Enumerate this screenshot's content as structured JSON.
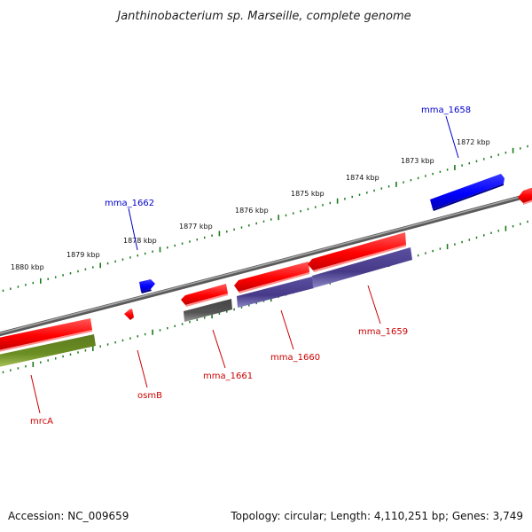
{
  "title": "Janthinobacterium sp. Marseille, complete genome",
  "footer": {
    "accession": "Accession: NC_009659",
    "summary": "Topology: circular; Length: 4,110,251 bp; Genes: 3,749"
  },
  "colors": {
    "forward_gene": "#ff0000",
    "reverse_gene": "#0000ff",
    "cds_purple": "#4b3f8e",
    "cds_olive": "#6b8e23",
    "cds_gray": "#555555",
    "ticks": "#1a7a1a",
    "backbone": "#777777",
    "label_red": "#cc0000",
    "label_blue": "#0000cc"
  },
  "ruler_labels": [
    "1880 kbp",
    "1879 kbp",
    "1878 kbp",
    "1877 kbp",
    "1876 kbp",
    "1875 kbp",
    "1874 kbp",
    "1873 kbp",
    "1872 kbp"
  ],
  "gene_labels": [
    "mma_1658",
    "mma_1662",
    "mrcA",
    "osmB",
    "mma_1661",
    "mma_1660",
    "mma_1659"
  ]
}
